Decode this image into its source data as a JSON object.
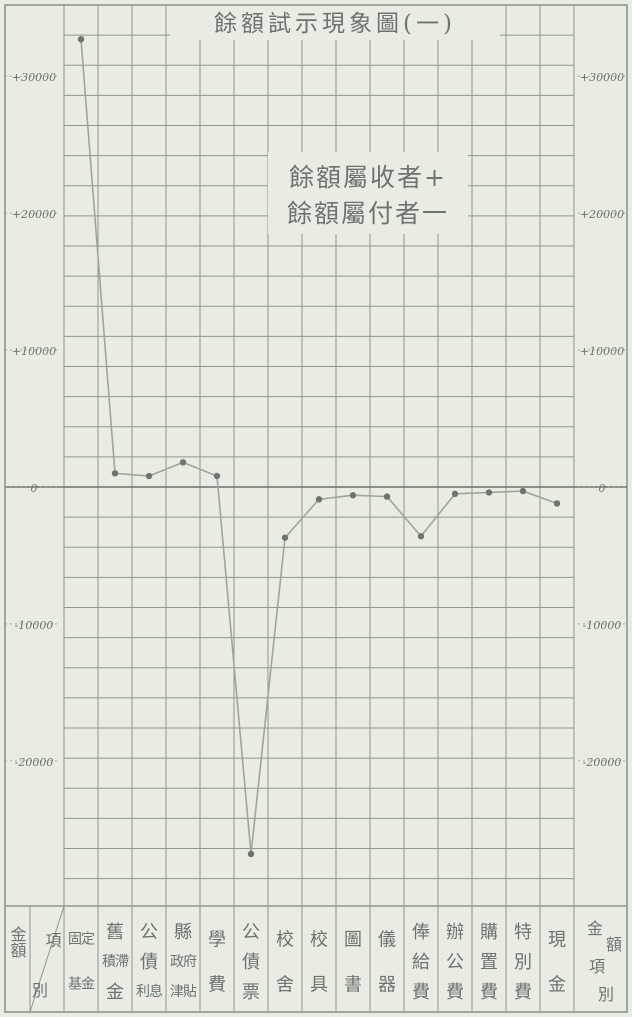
{
  "chart_data": {
    "type": "line",
    "title": "餘額試示現象圖(一)",
    "legend": {
      "positive": "餘額屬收者+",
      "negative": "餘額屬付者一"
    },
    "corner_label": {
      "top": "金額",
      "right": "項",
      "bottom": "別"
    },
    "right_corner_label": {
      "top_left": "金",
      "top_right": "額",
      "middle": "項",
      "bottom": "別"
    },
    "y_ticks": [
      {
        "value": 30000,
        "left": "+30000",
        "right": "+30000"
      },
      {
        "value": 20000,
        "left": "+20000",
        "right": "+20000"
      },
      {
        "value": 10000,
        "left": "+10000",
        "right": "+10000"
      },
      {
        "value": 0,
        "left": "0",
        "right": "0"
      },
      {
        "value": -10000,
        "left": "-10000",
        "right": "-10000"
      },
      {
        "value": -20000,
        "left": "-20000",
        "right": "-20000"
      }
    ],
    "ylim": [
      -28500,
      33000
    ],
    "categories": [
      "固定基金",
      "舊積滯金",
      "公債利息",
      "縣政府津貼",
      "學費",
      "公債票",
      "校舍",
      "校具",
      "圖書",
      "儀器",
      "俸給費",
      "辦公費",
      "購置費",
      "特別費",
      "現金"
    ],
    "category_labels": [
      [
        "固定",
        "基金"
      ],
      [
        "舊",
        "積滯",
        "金"
      ],
      [
        "公",
        "債",
        "利息"
      ],
      [
        "縣",
        "政府",
        "津貼"
      ],
      [
        "學",
        "費"
      ],
      [
        "公",
        "債",
        "票"
      ],
      [
        "校",
        "舍"
      ],
      [
        "校",
        "具"
      ],
      [
        "圖",
        "書"
      ],
      [
        "儀",
        "器"
      ],
      [
        "俸",
        "給",
        "費"
      ],
      [
        "辦",
        "公",
        "費"
      ],
      [
        "購",
        "置",
        "費"
      ],
      [
        "特",
        "別",
        "費"
      ],
      [
        "現",
        "金"
      ]
    ],
    "values": [
      32700,
      1000,
      800,
      1800,
      800,
      -26800,
      -3700,
      -900,
      -600,
      -700,
      -3600,
      -500,
      -400,
      -300,
      -1200
    ],
    "grid": true,
    "colors": {
      "paper": "#e9ece3",
      "grid": "#8f958f",
      "ink": "#6e7270",
      "line": "#a0a49f"
    }
  }
}
